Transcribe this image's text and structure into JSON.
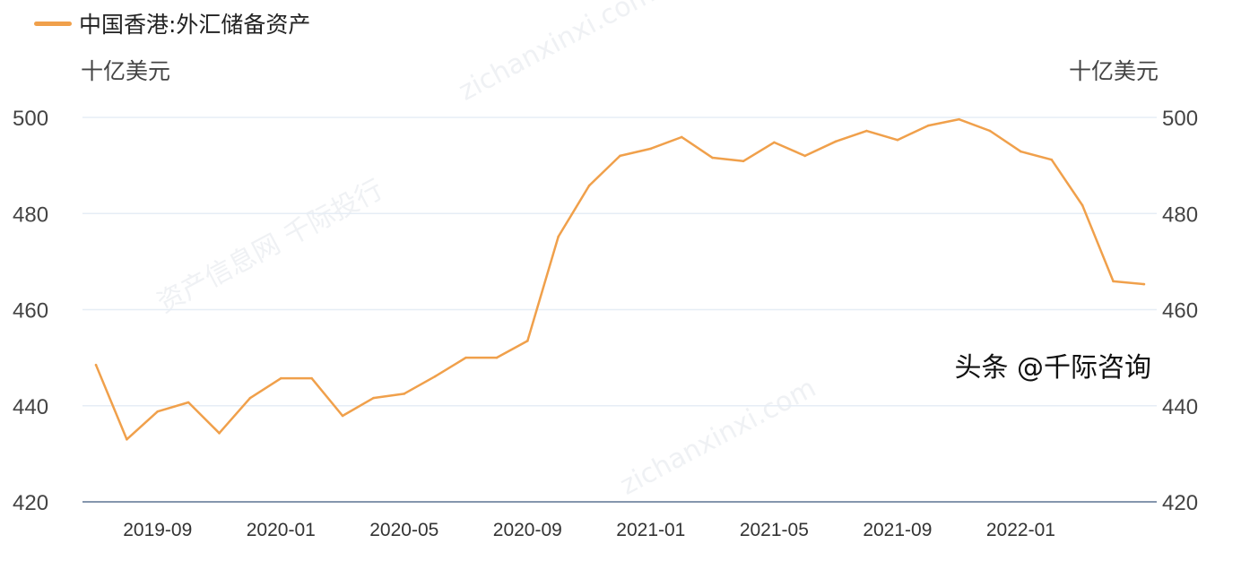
{
  "chart_data": {
    "type": "line",
    "title": "",
    "legend": [
      "中国香港:外汇储备资产"
    ],
    "legend_position": "top-left",
    "ylabel_left": "十亿美元",
    "ylabel_right": "十亿美元",
    "ylim": [
      420,
      500
    ],
    "yticks": [
      420,
      440,
      460,
      480,
      500
    ],
    "grid": true,
    "xticks": [
      "2019-09",
      "2020-01",
      "2020-05",
      "2020-09",
      "2021-01",
      "2021-05",
      "2021-09",
      "2022-01"
    ],
    "x": [
      "2019-07",
      "2019-08",
      "2019-09",
      "2019-10",
      "2019-11",
      "2019-12",
      "2020-01",
      "2020-02",
      "2020-03",
      "2020-04",
      "2020-05",
      "2020-06",
      "2020-07",
      "2020-08",
      "2020-09",
      "2020-10",
      "2020-11",
      "2020-12",
      "2021-01",
      "2021-02",
      "2021-03",
      "2021-04",
      "2021-05",
      "2021-06",
      "2021-07",
      "2021-08",
      "2021-09",
      "2021-10",
      "2021-11",
      "2021-12",
      "2022-01",
      "2022-02",
      "2022-03",
      "2022-04",
      "2022-05"
    ],
    "series": [
      {
        "name": "中国香港:外汇储备资产",
        "color": "#f0a04b",
        "values": [
          448.5,
          433.0,
          438.8,
          440.7,
          434.3,
          441.6,
          445.7,
          445.7,
          437.9,
          441.6,
          442.5,
          446.1,
          450.0,
          450.0,
          453.5,
          475.2,
          485.8,
          492.0,
          493.5,
          495.9,
          491.6,
          490.9,
          494.8,
          492.0,
          495.0,
          497.2,
          495.3,
          498.3,
          499.6,
          497.2,
          492.9,
          491.2,
          481.7,
          465.9,
          465.3
        ]
      }
    ]
  },
  "watermark": "头条 @千际咨询",
  "background_watermarks": [
    "资产信息网 千际投行",
    "zichanxinxi.com"
  ]
}
